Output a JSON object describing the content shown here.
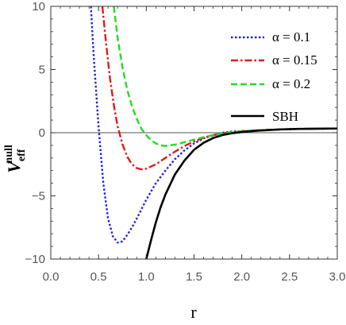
{
  "chart_data": {
    "type": "line",
    "xlabel": "r",
    "ylabel_main": "V",
    "ylabel_sub": "eff",
    "ylabel_sup": "null",
    "xlim": [
      0,
      3
    ],
    "ylim": [
      -10,
      10
    ],
    "x_ticks": [
      0.0,
      0.5,
      1.0,
      1.5,
      2.0,
      2.5,
      3.0
    ],
    "x_tick_labels": [
      "0.0",
      "0.5",
      "1.0",
      "1.5",
      "2.0",
      "2.5",
      "3.0"
    ],
    "y_ticks": [
      -10,
      -5,
      0,
      5,
      10
    ],
    "y_tick_labels": [
      "−10",
      "−5",
      "0",
      "5",
      "10"
    ],
    "legend_position": "top-right",
    "zero_line": true,
    "series": [
      {
        "name": "α = 0.1",
        "color": "#2323d8",
        "dash": "dotted",
        "x": [
          0.42,
          0.45,
          0.5,
          0.55,
          0.6,
          0.65,
          0.7,
          0.75,
          0.8,
          0.85,
          0.9,
          1.0,
          1.1,
          1.2,
          1.3,
          1.4,
          1.5,
          1.6,
          1.7,
          1.8,
          1.9,
          2.0,
          2.2,
          2.4,
          2.6,
          2.8,
          3.0
        ],
        "y": [
          10.0,
          6.0,
          0.5,
          -4.0,
          -6.8,
          -8.2,
          -8.7,
          -8.6,
          -8.1,
          -7.5,
          -6.8,
          -5.3,
          -4.0,
          -3.0,
          -2.1,
          -1.4,
          -0.85,
          -0.45,
          -0.2,
          0.0,
          0.1,
          0.12,
          0.2,
          0.26,
          0.3,
          0.32,
          0.33
        ]
      },
      {
        "name": "α = 0.15",
        "color": "#e01a1a",
        "dash": "dashdot",
        "x": [
          0.54,
          0.58,
          0.62,
          0.66,
          0.7,
          0.75,
          0.8,
          0.85,
          0.9,
          0.95,
          1.0,
          1.1,
          1.2,
          1.3,
          1.4,
          1.5,
          1.6,
          1.7,
          1.8,
          1.9,
          2.0,
          2.2,
          2.4,
          2.6,
          2.8,
          3.0
        ],
        "y": [
          10.0,
          7.0,
          4.3,
          2.2,
          0.5,
          -0.9,
          -1.9,
          -2.5,
          -2.8,
          -2.9,
          -2.85,
          -2.5,
          -2.0,
          -1.5,
          -1.05,
          -0.7,
          -0.4,
          -0.2,
          -0.05,
          0.05,
          0.12,
          0.2,
          0.26,
          0.3,
          0.32,
          0.33
        ]
      },
      {
        "name": "α = 0.2",
        "color": "#22dd22",
        "dash": "dashed",
        "x": [
          0.66,
          0.7,
          0.75,
          0.8,
          0.85,
          0.9,
          0.95,
          1.0,
          1.05,
          1.1,
          1.15,
          1.2,
          1.3,
          1.4,
          1.5,
          1.6,
          1.7,
          1.8,
          1.9,
          2.0,
          2.2,
          2.4,
          2.6,
          2.8,
          3.0
        ],
        "y": [
          10.0,
          7.5,
          5.2,
          3.4,
          2.1,
          1.1,
          0.3,
          -0.2,
          -0.6,
          -0.85,
          -1.0,
          -1.05,
          -0.95,
          -0.75,
          -0.55,
          -0.35,
          -0.18,
          -0.05,
          0.05,
          0.12,
          0.2,
          0.26,
          0.3,
          0.32,
          0.33
        ]
      },
      {
        "name": "SBH",
        "color": "#000000",
        "dash": "solid",
        "x": [
          1.0,
          1.05,
          1.1,
          1.15,
          1.2,
          1.3,
          1.4,
          1.5,
          1.6,
          1.7,
          1.8,
          1.9,
          2.0,
          2.1,
          2.2,
          2.4,
          2.6,
          2.8,
          3.0
        ],
        "y": [
          -10.0,
          -8.5,
          -7.1,
          -5.9,
          -4.9,
          -3.3,
          -2.2,
          -1.35,
          -0.8,
          -0.42,
          -0.18,
          -0.04,
          0.05,
          0.12,
          0.18,
          0.26,
          0.3,
          0.32,
          0.33
        ]
      }
    ]
  }
}
